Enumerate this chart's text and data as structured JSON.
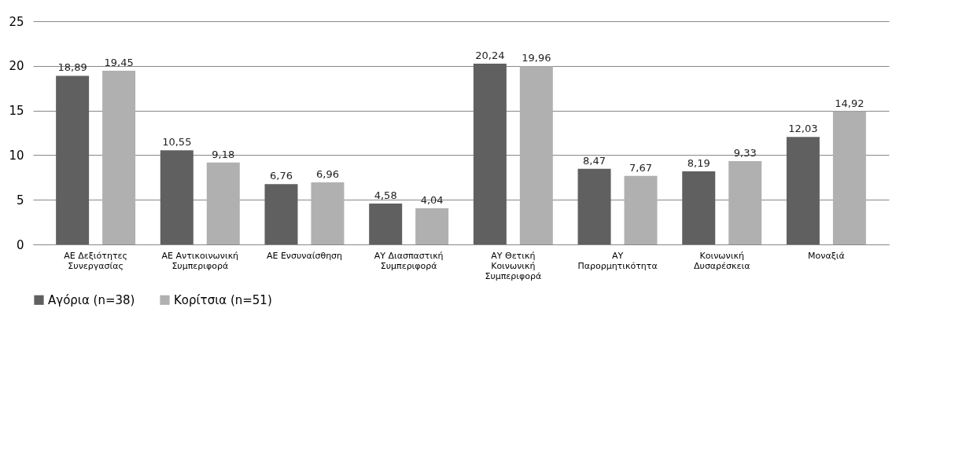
{
  "chart_data": {
    "type": "bar",
    "categories": [
      "ΑΕ Δεξιότητες Συνεργασίας",
      "ΑΕ Αντικοινωνική Συμπεριφορά",
      "ΑΕ Ενσυναίσθηση",
      "ΑΥ Διασπαστική Συμπεριφορά",
      "ΑΥ Θετική Κοινωνική Συμπεριφορά",
      "ΑΥ Παρορμητικότητα",
      "Κοινωνική Δυσαρέσκεια",
      "Μοναξιά"
    ],
    "series": [
      {
        "name": "Αγόρια (n=38)",
        "color": "#606060",
        "values": [
          18.89,
          10.55,
          6.76,
          4.58,
          20.24,
          8.47,
          8.19,
          12.03
        ],
        "value_labels": [
          "18,89",
          "10,55",
          "6,76",
          "4,58",
          "20,24",
          "8,47",
          "8,19",
          "12,03"
        ]
      },
      {
        "name": "Κορίτσια (n=51)",
        "color": "#b0b0b0",
        "values": [
          19.45,
          9.18,
          6.96,
          4.04,
          19.96,
          7.67,
          9.33,
          14.92
        ],
        "value_labels": [
          "19,45",
          "9,18",
          "6,96",
          "4,04",
          "19,96",
          "7,67",
          "9,33",
          "14,92"
        ]
      }
    ],
    "ylim": [
      0,
      25
    ],
    "yticks": [
      0,
      5,
      10,
      15,
      20,
      25
    ],
    "grid": "y",
    "legend": "bottom"
  }
}
